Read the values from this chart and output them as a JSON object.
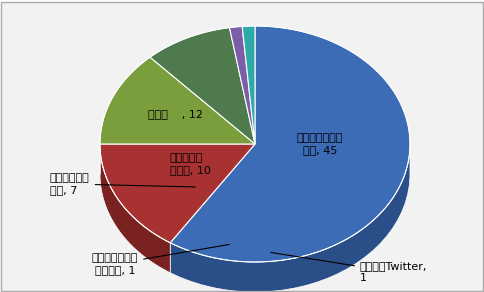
{
  "values": [
    45,
    12,
    10,
    7,
    1,
    1
  ],
  "colors": [
    "#3B6CB5",
    "#A83232",
    "#7A9E3B",
    "#4E7A4E",
    "#7B5EA7",
    "#2EAAA8"
  ],
  "colors_dark": [
    "#2A4E87",
    "#7A2222",
    "#5A7A2A",
    "#3A5A3A",
    "#5A4080",
    "#1A7A78"
  ],
  "orange_color": "#D4813A",
  "background_color": "#F2F2F2",
  "border_color": "#AAAAAA",
  "label_texts": [
    "図書館ウェブサ\nイト, 45",
    "その他    , 12",
    "他の人から\n聞いた, 10",
    "別のページの\n案内, 7",
    "検索エンジンで\n見つけた, 1",
    "ブログ・Twitter,\n1"
  ],
  "fontsize": 8,
  "figsize": [
    4.85,
    2.92
  ],
  "dpi": 100
}
